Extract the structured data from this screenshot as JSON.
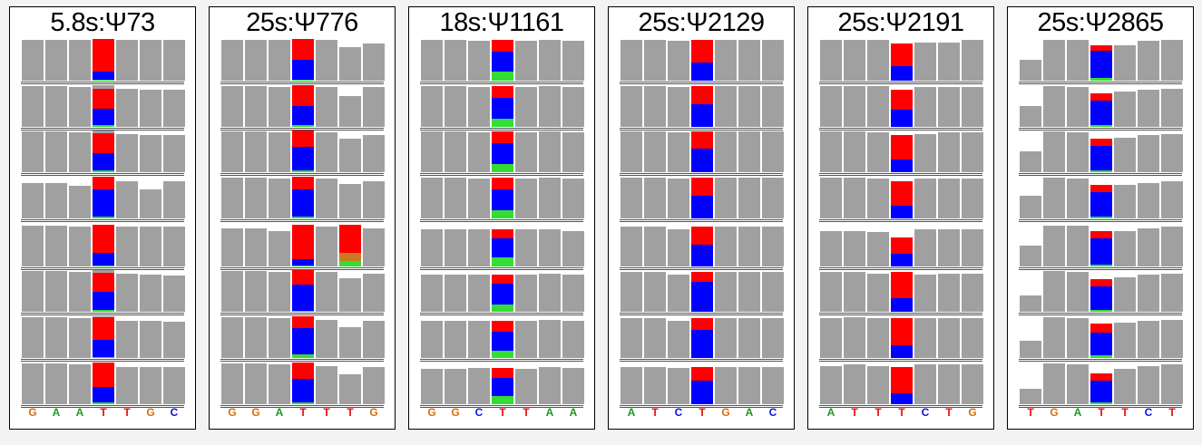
{
  "colors": {
    "A": "#1a9a1a",
    "C": "#1010e0",
    "G": "#d07010",
    "T": "#e01010",
    "gray": "#a0a0a0",
    "red": "#ff0000",
    "blue": "#0000ff",
    "green": "#33dd33",
    "orange": "#cc7722"
  },
  "panels": [
    {
      "title": "5.8s:Ψ73",
      "sequence": [
        "G",
        "A",
        "A",
        "T",
        "T",
        "G",
        "C"
      ],
      "coverage": [
        [
          0.98,
          0.98,
          0.98,
          1.0,
          0.98,
          0.98,
          0.98
        ],
        [
          0.98,
          0.98,
          0.95,
          1.0,
          0.92,
          0.9,
          0.9
        ],
        [
          0.98,
          0.98,
          0.95,
          1.0,
          0.92,
          0.9,
          0.9
        ],
        [
          0.85,
          0.85,
          0.78,
          1.0,
          0.9,
          0.7,
          0.9
        ],
        [
          0.98,
          0.98,
          0.95,
          1.0,
          0.95,
          0.95,
          0.95
        ],
        [
          0.98,
          0.98,
          0.95,
          1.0,
          0.92,
          0.9,
          0.88
        ],
        [
          0.98,
          0.98,
          0.95,
          1.0,
          0.9,
          0.9,
          0.88
        ],
        [
          0.98,
          0.98,
          0.95,
          1.0,
          0.9,
          0.9,
          0.9
        ]
      ],
      "center": [
        {
          "red": 0.78,
          "blue": 0.2,
          "green": 0.02
        },
        {
          "red": 0.48,
          "blue": 0.4,
          "green": 0.04
        },
        {
          "red": 0.48,
          "blue": 0.4,
          "green": 0.05
        },
        {
          "red": 0.3,
          "blue": 0.65,
          "green": 0.05
        },
        {
          "red": 0.68,
          "blue": 0.3,
          "green": 0.02
        },
        {
          "red": 0.45,
          "blue": 0.43,
          "green": 0.05
        },
        {
          "red": 0.55,
          "blue": 0.4,
          "green": 0.03
        },
        {
          "red": 0.58,
          "blue": 0.38,
          "green": 0.04
        }
      ]
    },
    {
      "title": "25s:Ψ776",
      "sequence": [
        "G",
        "G",
        "A",
        "T",
        "T",
        "T",
        "G"
      ],
      "coverage": [
        [
          0.98,
          0.98,
          0.98,
          1.0,
          0.98,
          0.8,
          0.9
        ],
        [
          0.98,
          0.98,
          0.95,
          1.0,
          0.95,
          0.75,
          0.95
        ],
        [
          0.98,
          0.98,
          0.95,
          1.0,
          0.95,
          0.8,
          0.9
        ],
        [
          0.98,
          0.98,
          0.95,
          1.0,
          0.95,
          0.82,
          0.9
        ],
        [
          0.92,
          0.92,
          0.85,
          1.0,
          0.95,
          1.0,
          0.92
        ],
        [
          0.98,
          0.98,
          0.95,
          1.0,
          0.95,
          0.8,
          0.92
        ],
        [
          0.98,
          0.98,
          0.95,
          1.0,
          0.92,
          0.75,
          0.9
        ],
        [
          0.98,
          0.98,
          0.95,
          1.0,
          0.92,
          0.72,
          0.9
        ]
      ],
      "center": [
        {
          "red": 0.5,
          "blue": 0.48,
          "green": 0.02
        },
        {
          "red": 0.5,
          "blue": 0.45,
          "green": 0.05
        },
        {
          "red": 0.4,
          "blue": 0.56,
          "green": 0.04
        },
        {
          "red": 0.3,
          "blue": 0.66,
          "green": 0.04
        },
        {
          "red": 0.82,
          "blue": 0.16,
          "green": 0.02
        },
        {
          "red": 0.35,
          "blue": 0.62,
          "green": 0.03
        },
        {
          "red": 0.28,
          "blue": 0.64,
          "green": 0.08
        },
        {
          "red": 0.4,
          "blue": 0.56,
          "green": 0.04
        }
      ]
    },
    {
      "title": "18s:Ψ1161",
      "sequence": [
        "G",
        "G",
        "C",
        "T",
        "T",
        "A",
        "A"
      ],
      "coverage": [
        [
          0.98,
          0.98,
          0.95,
          0.98,
          0.95,
          0.98,
          0.95
        ],
        [
          0.98,
          0.98,
          0.95,
          0.98,
          0.95,
          0.98,
          0.95
        ],
        [
          0.98,
          0.98,
          0.95,
          0.98,
          0.95,
          0.98,
          0.95
        ],
        [
          0.98,
          0.98,
          0.95,
          0.98,
          0.95,
          0.98,
          0.95
        ],
        [
          0.9,
          0.9,
          0.9,
          0.9,
          0.9,
          0.9,
          0.85
        ],
        [
          0.9,
          0.9,
          0.9,
          0.9,
          0.9,
          0.92,
          0.9
        ],
        [
          0.9,
          0.9,
          0.9,
          0.9,
          0.9,
          0.92,
          0.9
        ],
        [
          0.85,
          0.85,
          0.88,
          0.88,
          0.85,
          0.9,
          0.88
        ]
      ],
      "center": [
        {
          "red": 0.28,
          "blue": 0.5,
          "green": 0.22
        },
        {
          "red": 0.28,
          "blue": 0.52,
          "green": 0.2
        },
        {
          "red": 0.28,
          "blue": 0.52,
          "green": 0.2
        },
        {
          "red": 0.28,
          "blue": 0.52,
          "green": 0.2
        },
        {
          "red": 0.25,
          "blue": 0.5,
          "green": 0.25
        },
        {
          "red": 0.25,
          "blue": 0.55,
          "green": 0.2
        },
        {
          "red": 0.3,
          "blue": 0.5,
          "green": 0.2
        },
        {
          "red": 0.28,
          "blue": 0.5,
          "green": 0.22
        }
      ]
    },
    {
      "title": "25s:Ψ2129",
      "sequence": [
        "A",
        "T",
        "C",
        "T",
        "G",
        "A",
        "C"
      ],
      "coverage": [
        [
          0.98,
          0.98,
          0.95,
          0.98,
          0.98,
          0.98,
          0.98
        ],
        [
          0.98,
          0.98,
          0.95,
          0.98,
          0.98,
          0.98,
          0.98
        ],
        [
          0.98,
          0.98,
          0.95,
          0.98,
          0.98,
          0.98,
          0.98
        ],
        [
          0.98,
          0.98,
          0.95,
          0.98,
          0.98,
          0.98,
          0.98
        ],
        [
          0.95,
          0.95,
          0.9,
          0.95,
          0.95,
          0.95,
          0.95
        ],
        [
          0.95,
          0.95,
          0.9,
          0.95,
          0.95,
          0.95,
          0.95
        ],
        [
          0.95,
          0.95,
          0.9,
          0.95,
          0.95,
          0.95,
          0.95
        ],
        [
          0.9,
          0.9,
          0.88,
          0.9,
          0.9,
          0.9,
          0.9
        ]
      ],
      "center": [
        {
          "red": 0.55,
          "blue": 0.45,
          "green": 0.0
        },
        {
          "red": 0.45,
          "blue": 0.55,
          "green": 0.0
        },
        {
          "red": 0.42,
          "blue": 0.58,
          "green": 0.0
        },
        {
          "red": 0.45,
          "blue": 0.55,
          "green": 0.0
        },
        {
          "red": 0.45,
          "blue": 0.55,
          "green": 0.0
        },
        {
          "red": 0.25,
          "blue": 0.75,
          "green": 0.0
        },
        {
          "red": 0.28,
          "blue": 0.72,
          "green": 0.0
        },
        {
          "red": 0.38,
          "blue": 0.62,
          "green": 0.0
        }
      ]
    },
    {
      "title": "25s:Ψ2191",
      "sequence": [
        "A",
        "T",
        "T",
        "T",
        "C",
        "T",
        "G"
      ],
      "coverage": [
        [
          0.98,
          0.98,
          0.98,
          0.9,
          0.92,
          0.92,
          0.98
        ],
        [
          0.98,
          0.98,
          0.98,
          0.9,
          0.95,
          0.95,
          0.95
        ],
        [
          0.98,
          0.98,
          0.95,
          0.9,
          0.92,
          0.95,
          0.95
        ],
        [
          0.98,
          0.98,
          0.95,
          0.9,
          0.95,
          0.95,
          0.95
        ],
        [
          0.85,
          0.85,
          0.82,
          0.7,
          0.9,
          0.9,
          0.9
        ],
        [
          0.95,
          0.95,
          0.92,
          0.95,
          0.9,
          0.92,
          0.92
        ],
        [
          0.95,
          0.98,
          0.95,
          0.95,
          0.95,
          0.95,
          0.95
        ],
        [
          0.92,
          0.95,
          0.92,
          0.9,
          0.95,
          0.95,
          0.95
        ]
      ],
      "center": [
        {
          "red": 0.62,
          "blue": 0.38,
          "green": 0.0
        },
        {
          "red": 0.55,
          "blue": 0.45,
          "green": 0.0
        },
        {
          "red": 0.65,
          "blue": 0.35,
          "green": 0.0
        },
        {
          "red": 0.65,
          "blue": 0.35,
          "green": 0.0
        },
        {
          "red": 0.55,
          "blue": 0.45,
          "green": 0.0
        },
        {
          "red": 0.65,
          "blue": 0.35,
          "green": 0.0
        },
        {
          "red": 0.68,
          "blue": 0.32,
          "green": 0.0
        },
        {
          "red": 0.7,
          "blue": 0.3,
          "green": 0.0
        }
      ]
    },
    {
      "title": "25s:Ψ2865",
      "sequence": [
        "T",
        "G",
        "A",
        "T",
        "T",
        "C",
        "T"
      ],
      "coverage": [
        [
          0.5,
          0.98,
          0.98,
          0.85,
          0.85,
          0.95,
          0.98
        ],
        [
          0.5,
          0.98,
          0.95,
          0.8,
          0.85,
          0.9,
          0.92
        ],
        [
          0.5,
          0.98,
          0.95,
          0.8,
          0.82,
          0.9,
          0.92
        ],
        [
          0.55,
          0.98,
          0.95,
          0.8,
          0.8,
          0.85,
          0.9
        ],
        [
          0.5,
          0.98,
          0.98,
          0.85,
          0.85,
          0.92,
          0.95
        ],
        [
          0.4,
          0.98,
          0.95,
          0.78,
          0.82,
          0.9,
          0.92
        ],
        [
          0.42,
          0.98,
          0.95,
          0.82,
          0.85,
          0.9,
          0.92
        ],
        [
          0.38,
          0.98,
          0.95,
          0.75,
          0.85,
          0.92,
          0.95
        ]
      ],
      "center": [
        {
          "red": 0.15,
          "blue": 0.78,
          "green": 0.07
        },
        {
          "red": 0.22,
          "blue": 0.72,
          "green": 0.06
        },
        {
          "red": 0.2,
          "blue": 0.75,
          "green": 0.05
        },
        {
          "red": 0.2,
          "blue": 0.74,
          "green": 0.06
        },
        {
          "red": 0.2,
          "blue": 0.76,
          "green": 0.04
        },
        {
          "red": 0.22,
          "blue": 0.73,
          "green": 0.05
        },
        {
          "red": 0.25,
          "blue": 0.68,
          "green": 0.07
        },
        {
          "red": 0.25,
          "blue": 0.7,
          "green": 0.05
        }
      ]
    }
  ]
}
